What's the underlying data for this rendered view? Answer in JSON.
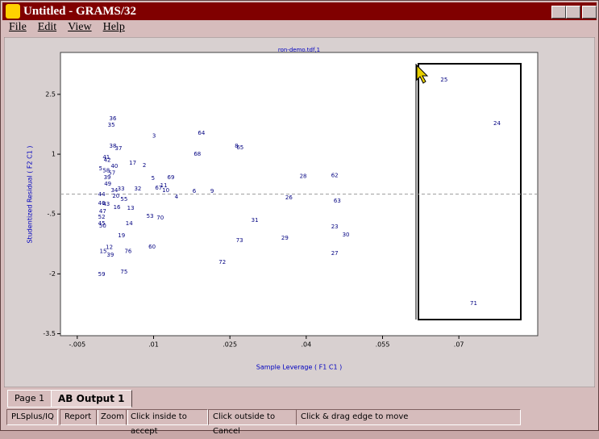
{
  "window": {
    "title": "Untitled - GRAMS/32",
    "menu": [
      "File",
      "Edit",
      "View",
      "Help"
    ]
  },
  "tabs": [
    "Page 1",
    "AB Output 1"
  ],
  "status_bar": [
    "PLSplus/IQ",
    "Report",
    "Zoom",
    "Click inside to accept",
    "Click outside to Cancel",
    "Click & drag edge to move"
  ],
  "chart_data": {
    "type": "scatter",
    "title": "ron-demo.tdf,1",
    "x_label": "Sample Leverage ( F1 C1 )",
    "y_label": "Studentized Residual ( F2 C1 )",
    "xlim": [
      -0.0083,
      0.0855
    ],
    "ylim": [
      -3.55,
      3.55
    ],
    "xticks": [
      {
        "value": -0.005,
        "label": "-.005"
      },
      {
        "value": 0.01,
        "label": ".01"
      },
      {
        "value": 0.025,
        "label": ".025"
      },
      {
        "value": 0.04,
        "label": ".04"
      },
      {
        "value": 0.055,
        "label": ".055"
      },
      {
        "value": 0.07,
        "label": ".07"
      }
    ],
    "yticks": [
      2.5,
      1,
      {
        "value": -0.5,
        "label": "-.5"
      },
      -2,
      -3.5
    ],
    "hline": 0,
    "series": [
      {
        "color": "#000080",
        "labels": [
          "36",
          "35",
          "3",
          "64",
          "38",
          "37",
          "8",
          "65",
          "68",
          "41",
          "42",
          "17",
          "2",
          "40",
          "5",
          "58",
          "57",
          "28",
          "62",
          "5",
          "69",
          "39",
          "49",
          "67",
          "11",
          "10",
          "32",
          "34",
          "33",
          "6",
          "9",
          "44",
          "20",
          "55",
          "4",
          "26",
          "63",
          "46",
          "43",
          "16",
          "13",
          "47",
          "53",
          "70",
          "52",
          "31",
          "45",
          "50",
          "14",
          "23",
          "30",
          "19",
          "29",
          "73",
          "60",
          "12",
          "15",
          "76",
          "39",
          "27",
          "72",
          "75",
          "59",
          "25",
          "24",
          "71"
        ],
        "x": [
          0.002,
          0.0017,
          0.0101,
          0.0194,
          0.002,
          0.0031,
          0.0263,
          0.027,
          0.0186,
          0.0007,
          0.0009,
          0.0059,
          0.0082,
          0.0023,
          -0.0004,
          0.0007,
          0.0018,
          0.0394,
          0.0456,
          0.0099,
          0.0134,
          0.0009,
          0.001,
          0.011,
          0.012,
          0.0124,
          0.0069,
          0.0023,
          0.0036,
          0.018,
          0.0215,
          -0.0002,
          0.0026,
          0.0042,
          0.0145,
          0.0366,
          0.0461,
          -0.0002,
          0.0007,
          0.0028,
          0.0055,
          0.0,
          0.0093,
          0.0113,
          -0.0002,
          0.0299,
          -0.0002,
          0.0,
          0.0052,
          0.0456,
          0.0478,
          0.0037,
          0.0358,
          0.0269,
          0.0097,
          0.0013,
          0.0001,
          0.005,
          0.0015,
          0.0456,
          0.0235,
          0.0042,
          -0.0002,
          0.0671,
          0.0775,
          0.0729
        ],
        "values": [
          1.89,
          1.73,
          1.46,
          1.53,
          1.2,
          1.14,
          1.2,
          1.16,
          1.0,
          0.92,
          0.85,
          0.78,
          0.72,
          0.7,
          0.64,
          0.59,
          0.53,
          0.45,
          0.47,
          0.39,
          0.41,
          0.41,
          0.25,
          0.15,
          0.21,
          0.09,
          0.13,
          0.09,
          0.13,
          0.07,
          0.07,
          -0.01,
          -0.05,
          -0.13,
          -0.07,
          -0.09,
          -0.17,
          -0.23,
          -0.25,
          -0.33,
          -0.35,
          -0.43,
          -0.56,
          -0.6,
          -0.58,
          -0.66,
          -0.74,
          -0.8,
          -0.74,
          -0.82,
          -1.02,
          -1.04,
          -1.1,
          -1.16,
          -1.32,
          -1.34,
          -1.44,
          -1.44,
          -1.53,
          -1.49,
          -1.71,
          -1.95,
          -2.01,
          2.86,
          1.77,
          -2.74
        ]
      }
    ]
  }
}
